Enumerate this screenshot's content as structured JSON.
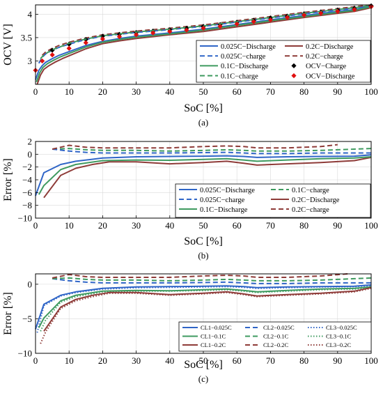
{
  "colors": {
    "blue": "#2f65c7",
    "green": "#3e9a5f",
    "red": "#8e3b38",
    "black": "#000000",
    "marker_red": "#e01010"
  },
  "chart_data": [
    {
      "id": "a",
      "type": "line",
      "caption": "(a)",
      "xlabel": "SoC [%]",
      "ylabel": "OCV [V]",
      "xlim": [
        0,
        100
      ],
      "ylim": [
        2.5,
        4.2
      ],
      "xticks": [
        0,
        10,
        20,
        30,
        40,
        50,
        60,
        70,
        80,
        90,
        100
      ],
      "yticks": [
        3,
        3.5,
        4
      ],
      "ytick_labels": [
        "3",
        "3.5",
        "4"
      ],
      "grid": true,
      "legend_placement": "lower-right",
      "legend_columns": 2,
      "series": [
        {
          "name": "0.025C−Discharge",
          "color": "blue",
          "dash": "solid",
          "width": 2,
          "x": [
            0,
            1,
            2,
            3,
            5,
            7,
            10,
            15,
            20,
            25,
            30,
            40,
            50,
            60,
            70,
            80,
            90,
            95,
            100
          ],
          "y": [
            2.6,
            2.8,
            2.9,
            2.97,
            3.05,
            3.12,
            3.2,
            3.33,
            3.42,
            3.48,
            3.53,
            3.6,
            3.68,
            3.78,
            3.88,
            3.97,
            4.06,
            4.1,
            4.17
          ]
        },
        {
          "name": "0.2C−Discharge",
          "color": "red",
          "dash": "solid",
          "width": 2,
          "x": [
            0.5,
            1.5,
            2.5,
            4,
            6,
            8,
            10,
            15,
            20,
            25,
            30,
            40,
            50,
            60,
            70,
            80,
            90,
            95,
            100
          ],
          "y": [
            2.5,
            2.7,
            2.82,
            2.9,
            2.98,
            3.05,
            3.11,
            3.26,
            3.37,
            3.43,
            3.48,
            3.56,
            3.63,
            3.73,
            3.83,
            3.93,
            4.02,
            4.06,
            4.14
          ]
        },
        {
          "name": "0.025C−charge",
          "color": "blue",
          "dash": "dash",
          "width": 2,
          "x": [
            1,
            2,
            3,
            5,
            7,
            10,
            15,
            20,
            25,
            30,
            40,
            50,
            60,
            70,
            80,
            90,
            95,
            100
          ],
          "y": [
            2.95,
            3.08,
            3.15,
            3.23,
            3.29,
            3.36,
            3.46,
            3.53,
            3.57,
            3.61,
            3.67,
            3.74,
            3.83,
            3.92,
            4.01,
            4.09,
            4.13,
            4.19
          ]
        },
        {
          "name": "0.2C−charge",
          "color": "red",
          "dash": "dash",
          "width": 2,
          "x": [
            2,
            3,
            5,
            7,
            10,
            15,
            20,
            25,
            30,
            40,
            50,
            60,
            70,
            80,
            90,
            95,
            100
          ],
          "y": [
            3.12,
            3.19,
            3.27,
            3.33,
            3.4,
            3.49,
            3.56,
            3.6,
            3.64,
            3.7,
            3.77,
            3.86,
            3.95,
            4.04,
            4.12,
            4.16,
            4.2
          ]
        },
        {
          "name": "0.1C−Discharge",
          "color": "green",
          "dash": "solid",
          "width": 2,
          "x": [
            0.3,
            1.2,
            2.2,
            3.5,
            5.5,
            7.5,
            10,
            15,
            20,
            25,
            30,
            40,
            50,
            60,
            70,
            80,
            90,
            95,
            100
          ],
          "y": [
            2.55,
            2.74,
            2.86,
            2.94,
            3.02,
            3.09,
            3.16,
            3.3,
            3.4,
            3.46,
            3.51,
            3.58,
            3.66,
            3.76,
            3.86,
            3.95,
            4.04,
            4.08,
            4.16
          ]
        },
        {
          "name": "OCV−Charge",
          "color": "black",
          "marker": "diamond",
          "line": false,
          "x": [
            5,
            10,
            15,
            20,
            25,
            30,
            35,
            40,
            45,
            50,
            55,
            60,
            65,
            70,
            75,
            80,
            85,
            90,
            95,
            100
          ],
          "y": [
            3.23,
            3.36,
            3.46,
            3.53,
            3.57,
            3.61,
            3.64,
            3.67,
            3.7,
            3.74,
            3.78,
            3.83,
            3.87,
            3.92,
            3.96,
            4.01,
            4.05,
            4.09,
            4.13,
            4.18
          ]
        },
        {
          "name": "0.1C−charge",
          "color": "green",
          "dash": "dash",
          "width": 2,
          "x": [
            1.5,
            2.5,
            4,
            6,
            8,
            10,
            15,
            20,
            25,
            30,
            40,
            50,
            60,
            70,
            80,
            90,
            95,
            100
          ],
          "y": [
            3.05,
            3.13,
            3.2,
            3.27,
            3.32,
            3.38,
            3.47,
            3.54,
            3.58,
            3.62,
            3.68,
            3.75,
            3.84,
            3.93,
            4.02,
            4.1,
            4.14,
            4.19
          ]
        },
        {
          "name": "OCV−Discharge",
          "color": "marker_red",
          "marker": "diamond",
          "line": false,
          "x": [
            0,
            2,
            5,
            10,
            15,
            20,
            25,
            30,
            35,
            40,
            45,
            50,
            55,
            60,
            65,
            70,
            75,
            80,
            85,
            90,
            95,
            100
          ],
          "y": [
            2.8,
            3.0,
            3.13,
            3.27,
            3.39,
            3.47,
            3.52,
            3.56,
            3.6,
            3.63,
            3.66,
            3.7,
            3.74,
            3.79,
            3.84,
            3.88,
            3.93,
            3.98,
            4.02,
            4.06,
            4.1,
            4.16
          ]
        }
      ]
    },
    {
      "id": "b",
      "type": "line",
      "caption": "(b)",
      "xlabel": "SoC [%]",
      "ylabel": "Error [%]",
      "xlim": [
        0,
        100
      ],
      "ylim": [
        -10,
        2
      ],
      "xticks": [
        0,
        10,
        20,
        30,
        40,
        50,
        60,
        70,
        80,
        90,
        100
      ],
      "yticks": [
        -10,
        -8,
        -6,
        -4,
        -2,
        0,
        2
      ],
      "ytick_labels": [
        "−10",
        "−8",
        "−6",
        "−4",
        "−2",
        "0",
        "2"
      ],
      "grid": true,
      "legend_placement": "lower-right",
      "legend_columns": 2,
      "series": [
        {
          "name": "0.025C−Discharge",
          "color": "blue",
          "dash": "solid",
          "width": 2,
          "x": [
            0,
            2.5,
            7.5,
            12,
            20,
            25,
            30,
            40,
            50,
            57,
            62,
            66,
            75,
            85,
            95,
            100
          ],
          "y": [
            -6.5,
            -2.9,
            -1.6,
            -1.1,
            -0.6,
            -0.5,
            -0.4,
            -0.35,
            -0.3,
            -0.25,
            -0.35,
            -0.5,
            -0.4,
            -0.35,
            -0.3,
            -0.1
          ]
        },
        {
          "name": "0.1C−charge",
          "color": "green",
          "dash": "dash",
          "width": 2,
          "x": [
            5,
            10,
            15,
            20,
            30,
            40,
            50,
            57,
            62,
            66,
            75,
            85,
            95,
            100
          ],
          "y": [
            0.8,
            0.9,
            0.7,
            0.6,
            0.6,
            0.5,
            0.6,
            0.7,
            0.6,
            0.5,
            0.5,
            0.6,
            0.8,
            0.9
          ]
        },
        {
          "name": "0.025C−charge",
          "color": "blue",
          "dash": "dash",
          "width": 2,
          "x": [
            5,
            10,
            15,
            20,
            30,
            40,
            50,
            57,
            62,
            66,
            75,
            85,
            95,
            100
          ],
          "y": [
            0.8,
            0.5,
            0.3,
            0.2,
            0.2,
            0.2,
            0.25,
            0.3,
            0.2,
            0.1,
            0.1,
            0.2,
            0.2,
            0.2
          ]
        },
        {
          "name": "0.2C−Discharge",
          "color": "red",
          "dash": "solid",
          "width": 2,
          "x": [
            2.5,
            7.5,
            12,
            17,
            22,
            30,
            40,
            50,
            57,
            62,
            66,
            75,
            85,
            95,
            100
          ],
          "y": [
            -6.8,
            -3.3,
            -2.2,
            -1.6,
            -1.2,
            -1.2,
            -1.5,
            -1.3,
            -1.1,
            -1.4,
            -1.7,
            -1.5,
            -1.3,
            -1.0,
            -0.5
          ]
        },
        {
          "name": "0.1C−Discharge",
          "color": "green",
          "dash": "solid",
          "width": 2,
          "x": [
            1,
            2.5,
            7.5,
            12,
            20,
            30,
            40,
            50,
            57,
            62,
            66,
            75,
            85,
            95,
            100
          ],
          "y": [
            -6.3,
            -4.9,
            -2.4,
            -1.6,
            -1.0,
            -0.9,
            -0.95,
            -0.8,
            -0.7,
            -0.9,
            -1.1,
            -0.9,
            -0.7,
            -0.6,
            -0.4
          ]
        },
        {
          "name": "0.2C−charge",
          "color": "red",
          "dash": "dash",
          "width": 2,
          "x": [
            5,
            10,
            15,
            20,
            30,
            40,
            50,
            57,
            62,
            66,
            75,
            85,
            90
          ],
          "y": [
            0.8,
            1.4,
            1.1,
            1.0,
            1.0,
            1.0,
            1.2,
            1.3,
            1.2,
            1.0,
            1.0,
            1.2,
            1.5
          ]
        }
      ]
    },
    {
      "id": "c",
      "type": "line",
      "caption": "(c)",
      "xlabel": "SoC [%]",
      "ylabel": "Error [%]",
      "xlim": [
        0,
        100
      ],
      "ylim": [
        -10,
        1.5
      ],
      "xticks": [
        0,
        10,
        20,
        30,
        40,
        50,
        60,
        70,
        80,
        90,
        100
      ],
      "yticks": [
        -10,
        -5,
        0
      ],
      "ytick_labels": [
        "−10",
        "−5",
        "0"
      ],
      "grid": true,
      "legend_placement": "lower-right",
      "legend_columns": 3,
      "series": [
        {
          "name": "CL1−0.025C",
          "color": "blue",
          "dash": "solid",
          "width": 2,
          "x": [
            0,
            2.5,
            7.5,
            12,
            20,
            25,
            30,
            40,
            50,
            57,
            62,
            66,
            75,
            85,
            95,
            100
          ],
          "y": [
            -6.5,
            -2.9,
            -1.6,
            -1.1,
            -0.6,
            -0.5,
            -0.4,
            -0.35,
            -0.3,
            -0.25,
            -0.35,
            -0.5,
            -0.4,
            -0.35,
            -0.3,
            -0.1
          ]
        },
        {
          "name": "CL2−0.025C",
          "color": "blue",
          "dash": "dash",
          "width": 2,
          "x": [
            5,
            10,
            15,
            20,
            30,
            40,
            50,
            57,
            62,
            66,
            75,
            85,
            95,
            100
          ],
          "y": [
            0.8,
            0.5,
            0.3,
            0.2,
            0.2,
            0.2,
            0.25,
            0.3,
            0.2,
            0.1,
            0.1,
            0.2,
            0.2,
            0.2
          ]
        },
        {
          "name": "CL3−0.025C",
          "color": "blue",
          "dash": "dot",
          "width": 2,
          "x": [
            0.5,
            2.5,
            7.5,
            12,
            20,
            30,
            40,
            50,
            57,
            62,
            66,
            75,
            85,
            95,
            100
          ],
          "y": [
            -7.0,
            -3.1,
            -1.7,
            -1.2,
            -0.7,
            -0.5,
            -0.45,
            -0.4,
            -0.35,
            -0.45,
            -0.6,
            -0.5,
            -0.4,
            -0.35,
            -0.2
          ]
        },
        {
          "name": "CL1−0.1C",
          "color": "green",
          "dash": "solid",
          "width": 2,
          "x": [
            1,
            2.5,
            7.5,
            12,
            20,
            30,
            40,
            50,
            57,
            62,
            66,
            75,
            85,
            95,
            100
          ],
          "y": [
            -6.3,
            -4.9,
            -2.4,
            -1.6,
            -1.0,
            -0.9,
            -0.95,
            -0.8,
            -0.7,
            -0.9,
            -1.1,
            -0.9,
            -0.7,
            -0.6,
            -0.4
          ]
        },
        {
          "name": "CL2−0.1C",
          "color": "green",
          "dash": "dash",
          "width": 2,
          "x": [
            5,
            10,
            15,
            20,
            30,
            40,
            50,
            57,
            62,
            66,
            75,
            85,
            95,
            100
          ],
          "y": [
            0.8,
            0.9,
            0.7,
            0.6,
            0.6,
            0.5,
            0.6,
            0.7,
            0.6,
            0.5,
            0.5,
            0.6,
            0.8,
            0.9
          ]
        },
        {
          "name": "CL3−0.1C",
          "color": "green",
          "dash": "dot",
          "width": 2,
          "x": [
            1.5,
            3,
            7.5,
            12,
            20,
            30,
            40,
            50,
            57,
            62,
            66,
            75,
            85,
            95,
            100
          ],
          "y": [
            -6.8,
            -5.2,
            -2.6,
            -1.8,
            -1.1,
            -1.0,
            -1.0,
            -0.9,
            -0.8,
            -1.0,
            -1.2,
            -1.0,
            -0.8,
            -0.7,
            -0.5
          ]
        },
        {
          "name": "CL1−0.2C",
          "color": "red",
          "dash": "solid",
          "width": 2,
          "x": [
            2.5,
            7.5,
            12,
            17,
            22,
            30,
            40,
            50,
            57,
            62,
            66,
            75,
            85,
            95,
            100
          ],
          "y": [
            -6.8,
            -3.3,
            -2.2,
            -1.6,
            -1.2,
            -1.2,
            -1.5,
            -1.3,
            -1.1,
            -1.4,
            -1.7,
            -1.5,
            -1.3,
            -1.0,
            -0.5
          ]
        },
        {
          "name": "CL2−0.2C",
          "color": "red",
          "dash": "dash",
          "width": 2,
          "x": [
            5,
            10,
            15,
            20,
            30,
            40,
            50,
            57,
            62,
            66,
            75,
            85,
            93
          ],
          "y": [
            0.9,
            1.4,
            1.1,
            1.0,
            1.0,
            1.0,
            1.2,
            1.3,
            1.2,
            1.0,
            1.0,
            1.2,
            1.5
          ]
        },
        {
          "name": "CL3−0.2C",
          "color": "red",
          "dash": "dot",
          "width": 2,
          "x": [
            1.5,
            3,
            7.5,
            12,
            17,
            22,
            30,
            40,
            50,
            57,
            62,
            66,
            75,
            85,
            95,
            100
          ],
          "y": [
            -8.6,
            -6.9,
            -3.5,
            -2.4,
            -1.8,
            -1.3,
            -1.3,
            -1.6,
            -1.4,
            -1.2,
            -1.5,
            -1.8,
            -1.6,
            -1.4,
            -1.1,
            -0.6
          ]
        }
      ]
    }
  ]
}
